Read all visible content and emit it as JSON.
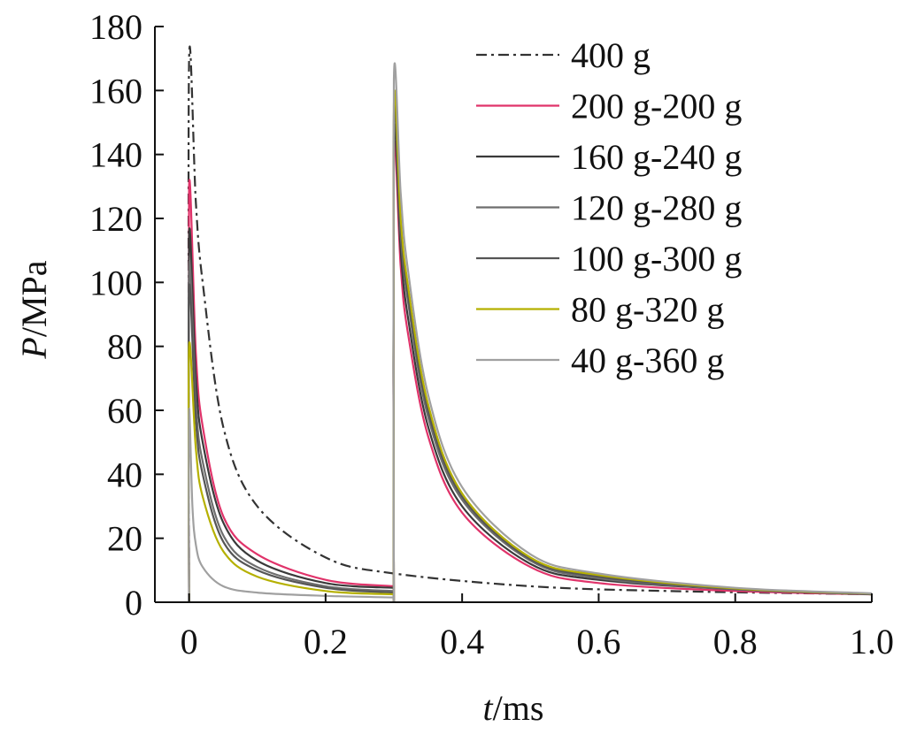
{
  "chart_data": {
    "type": "line",
    "title": "",
    "xlabel": {
      "var": "t",
      "unit": "/ms"
    },
    "ylabel": {
      "var": "P",
      "unit": "/MPa"
    },
    "xlim": [
      -0.05,
      1.0
    ],
    "ylim": [
      0,
      180
    ],
    "x_ticks": [
      "0",
      "0.2",
      "0.4",
      "0.6",
      "0.8",
      "1.0"
    ],
    "x_tick_values": [
      0,
      0.2,
      0.4,
      0.6,
      0.8,
      1.0
    ],
    "y_ticks": [
      "0",
      "20",
      "40",
      "60",
      "80",
      "100",
      "120",
      "140",
      "160",
      "180"
    ],
    "y_tick_values": [
      0,
      20,
      40,
      60,
      80,
      100,
      120,
      140,
      160,
      180
    ],
    "grid": false,
    "legend_position": "top-right",
    "series": [
      {
        "name": "400 g",
        "color": "#333333",
        "dash": "dashdot",
        "pulses": [
          {
            "x": [
              0,
              0.01,
              0.02,
              0.05,
              0.1,
              0.2,
              0.3,
              0.5,
              0.7,
              1.0
            ],
            "y": [
              169,
              125,
              100,
              55,
              30,
              14,
              9,
              5,
              3.5,
              2.5
            ]
          }
        ]
      },
      {
        "name": "200 g-200 g",
        "color": "#e0336a",
        "dash": "solid",
        "pulses": [
          {
            "x": [
              0,
              0.01,
              0.02,
              0.05,
              0.1,
              0.2,
              0.3
            ],
            "y": [
              130,
              78,
              55,
              27,
              15,
              7,
              5
            ]
          },
          {
            "x": [
              0.3,
              0.31,
              0.32,
              0.35,
              0.4,
              0.5,
              0.6,
              0.8,
              1.0
            ],
            "y": [
              140,
              105,
              85,
              52,
              28,
              11,
              6,
              3.5,
              2.5
            ]
          }
        ]
      },
      {
        "name": "160 g-240 g",
        "color": "#3a3a3a",
        "dash": "solid",
        "pulses": [
          {
            "x": [
              0,
              0.01,
              0.02,
              0.05,
              0.1,
              0.2,
              0.3
            ],
            "y": [
              115,
              70,
              50,
              25,
              13,
              6,
              4.5
            ]
          },
          {
            "x": [
              0.3,
              0.31,
              0.32,
              0.35,
              0.4,
              0.5,
              0.6,
              0.8,
              1.0
            ],
            "y": [
              145,
              110,
              90,
              55,
              30,
              12,
              7,
              4,
              2.5
            ]
          }
        ]
      },
      {
        "name": "120 g-280 g",
        "color": "#6e6e6e",
        "dash": "solid",
        "pulses": [
          {
            "x": [
              0,
              0.01,
              0.02,
              0.05,
              0.1,
              0.2,
              0.3
            ],
            "y": [
              105,
              62,
              44,
              21,
              11,
              5,
              3.5
            ]
          },
          {
            "x": [
              0.3,
              0.31,
              0.32,
              0.35,
              0.4,
              0.5,
              0.6,
              0.8,
              1.0
            ],
            "y": [
              150,
              115,
              95,
              58,
              32,
              13,
              7.5,
              4,
              2.5
            ]
          }
        ]
      },
      {
        "name": "100 g-300 g",
        "color": "#555555",
        "dash": "solid",
        "pulses": [
          {
            "x": [
              0,
              0.01,
              0.02,
              0.05,
              0.1,
              0.2,
              0.3
            ],
            "y": [
              98,
              57,
              40,
              19,
              10,
              4.5,
              3
            ]
          },
          {
            "x": [
              0.3,
              0.31,
              0.32,
              0.35,
              0.4,
              0.5,
              0.6,
              0.8,
              1.0
            ],
            "y": [
              152,
              118,
              97,
              60,
              33,
              13.5,
              8,
              4.2,
              2.6
            ]
          }
        ]
      },
      {
        "name": "80 g-320 g",
        "color": "#b5b000",
        "dash": "solid",
        "pulses": [
          {
            "x": [
              0,
              0.01,
              0.02,
              0.05,
              0.1,
              0.2,
              0.3
            ],
            "y": [
              80,
              48,
              33,
              16,
              8,
              3.5,
              2.5
            ]
          },
          {
            "x": [
              0.3,
              0.31,
              0.32,
              0.35,
              0.4,
              0.5,
              0.6,
              0.8,
              1.0
            ],
            "y": [
              155,
              120,
              100,
              62,
              34,
              14,
              8.5,
              4.3,
              2.7
            ]
          }
        ]
      },
      {
        "name": "40 g-360 g",
        "color": "#a0a0a0",
        "dash": "solid",
        "pulses": [
          {
            "x": [
              0,
              0.005,
              0.01,
              0.02,
              0.05,
              0.1,
              0.2,
              0.3
            ],
            "y": [
              60,
              30,
              18,
              11,
              5,
              3,
              2,
              1.5
            ]
          },
          {
            "x": [
              0.3,
              0.31,
              0.32,
              0.35,
              0.4,
              0.5,
              0.6,
              0.8,
              1.0
            ],
            "y": [
              163,
              128,
              105,
              65,
              36,
              15,
              9,
              4.5,
              2.8
            ]
          }
        ]
      }
    ]
  }
}
